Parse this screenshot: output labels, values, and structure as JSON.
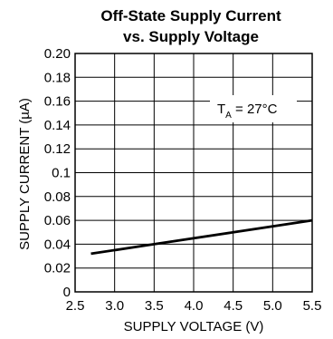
{
  "chart_data": {
    "type": "line",
    "title": "Off-State Supply Current",
    "subtitle": "vs. Supply Voltage",
    "xlabel": "SUPPLY VOLTAGE (V)",
    "ylabel_prefix": "SUPPLY CURRENT (",
    "ylabel_unit": "µA",
    "ylabel_suffix": ")",
    "xlim": [
      2.5,
      5.5
    ],
    "ylim": [
      0,
      0.2
    ],
    "x_ticks": [
      "2.5",
      "3.0",
      "3.5",
      "4.0",
      "4.5",
      "5.0",
      "5.5"
    ],
    "y_ticks": [
      "0",
      "0.02",
      "0.04",
      "0.06",
      "0.08",
      "0.1",
      "0.12",
      "0.14",
      "0.16",
      "0.18",
      "0.20"
    ],
    "grid": true,
    "annotation": {
      "prefix": "T",
      "subscript": "A",
      "suffix": " = 27°C"
    },
    "series": [
      {
        "x": [
          2.7,
          3.5,
          4.5,
          5.5
        ],
        "y": [
          0.032,
          0.04,
          0.05,
          0.06
        ],
        "color": "#000000"
      }
    ]
  }
}
